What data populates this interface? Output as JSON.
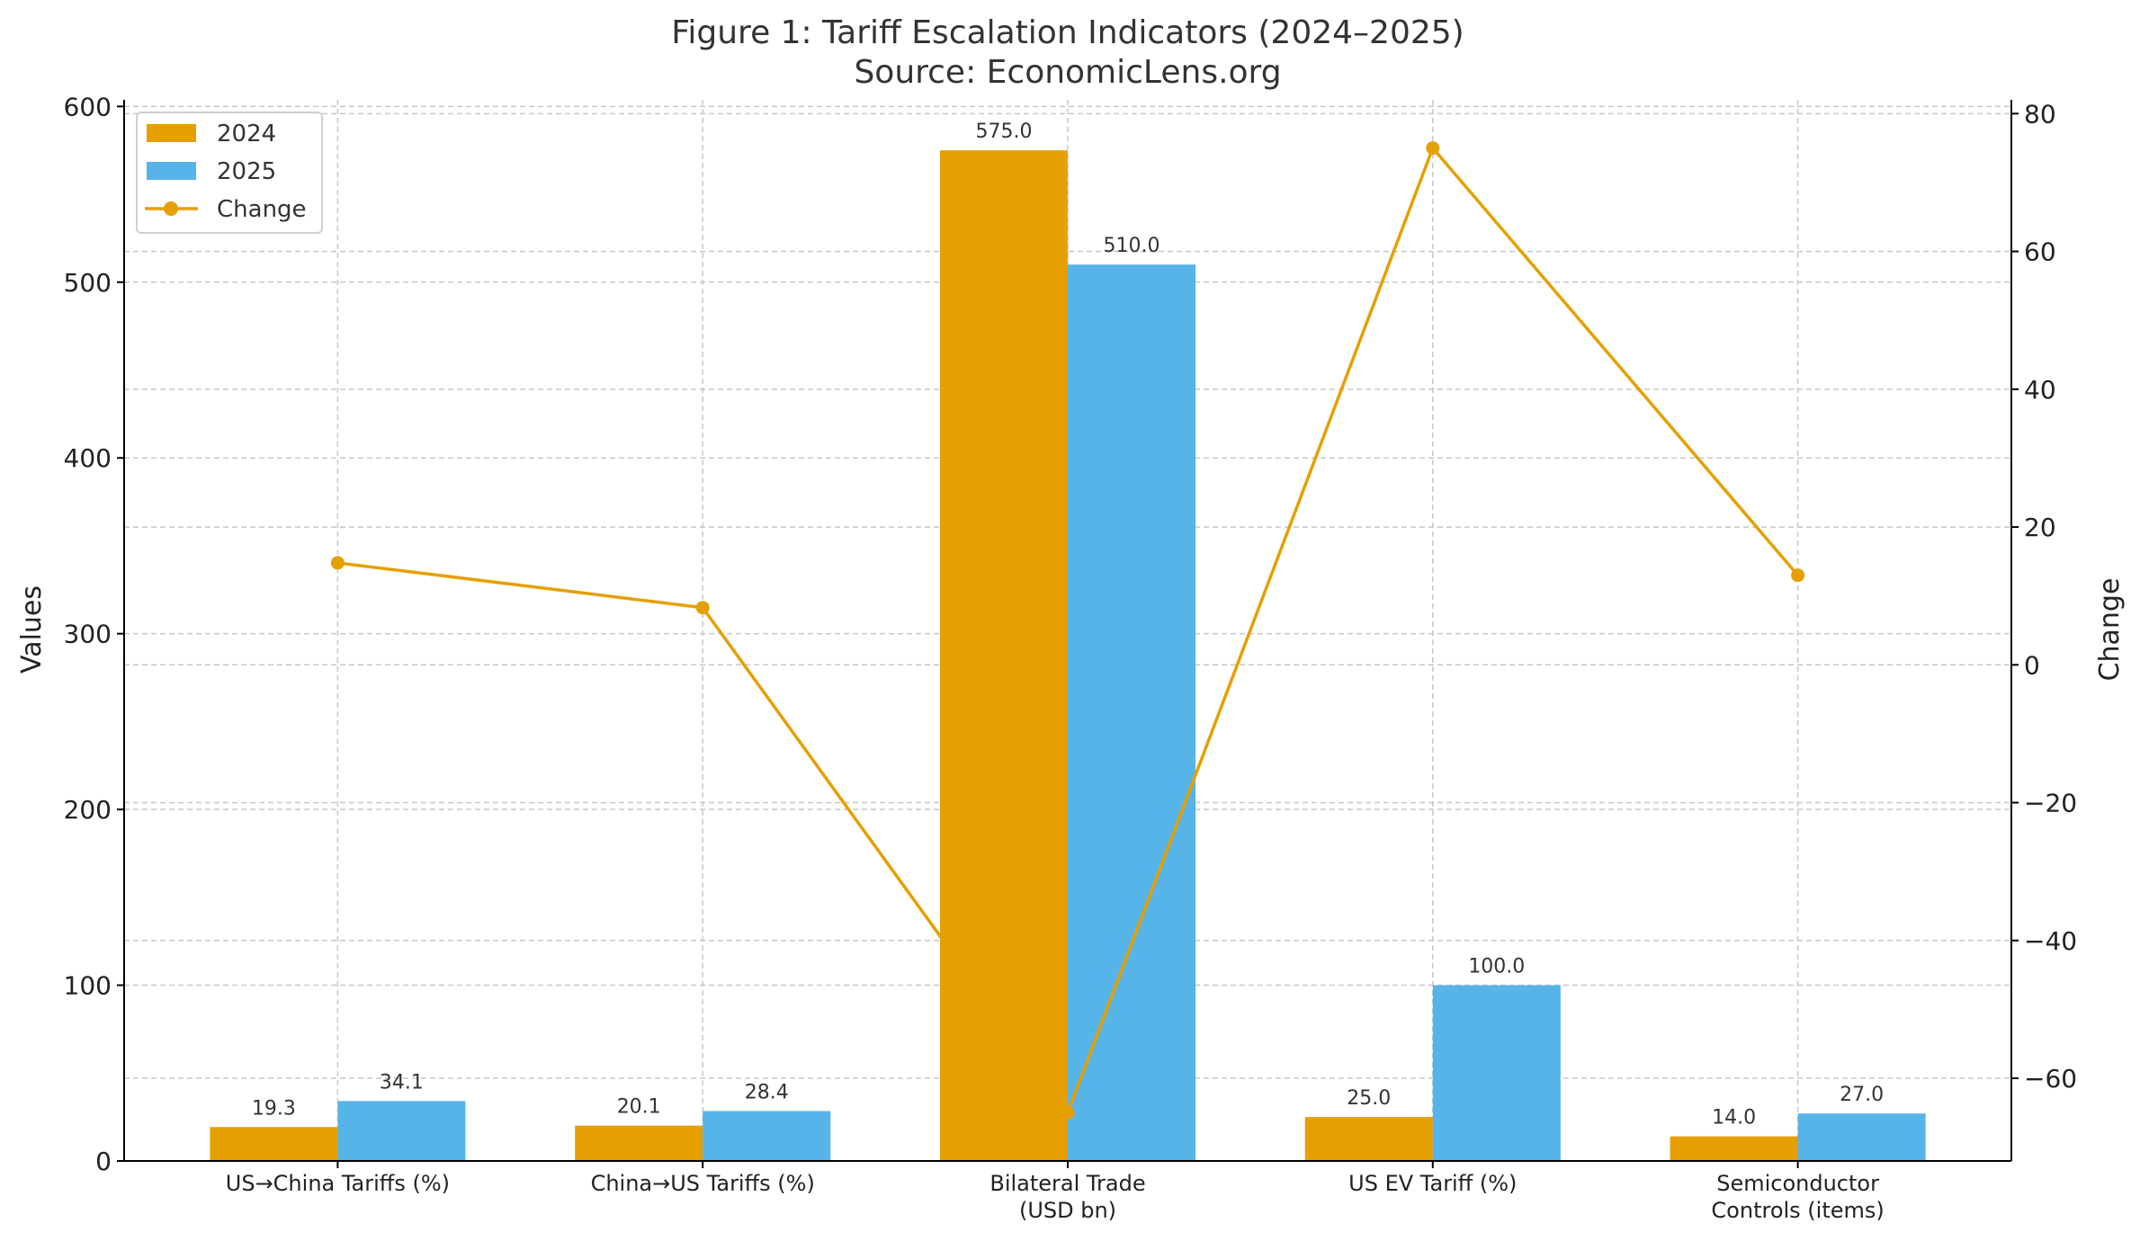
{
  "chart_data": {
    "type": "bar",
    "title": "Figure 1: Tariff Escalation Indicators (2024–2025)",
    "subtitle": "Source: EconomicLens.org",
    "categories": [
      "US→China Tariffs (%)",
      "China→US Tariffs (%)",
      "Bilateral Trade\n(USD bn)",
      "US EV Tariff (%)",
      "Semiconductor\nControls (items)"
    ],
    "series": [
      {
        "name": "2024",
        "type": "bar",
        "axis": "left",
        "color": "#E69F00",
        "values": [
          19.3,
          20.1,
          575.0,
          25.0,
          14.0
        ]
      },
      {
        "name": "2025",
        "type": "bar",
        "axis": "left",
        "color": "#56B4E9",
        "values": [
          34.1,
          28.4,
          510.0,
          100.0,
          27.0
        ]
      },
      {
        "name": "Change",
        "type": "line",
        "axis": "right",
        "color": "#E69F00",
        "values": [
          14.8,
          8.3,
          -65.0,
          75.0,
          13.0
        ]
      }
    ],
    "ylabel": "Values",
    "y2label": "Change",
    "ylim": [
      0,
      603.75
    ],
    "y2lim": [
      -72,
      82
    ],
    "yticks": [
      0,
      100,
      200,
      300,
      400,
      500,
      600
    ],
    "y2ticks": [
      -60,
      -40,
      -20,
      0,
      20,
      40,
      60,
      80
    ],
    "y2tick_labels": [
      "−60",
      "−40",
      "−20",
      "0",
      "20",
      "40",
      "60",
      "80"
    ],
    "bar_labels": true,
    "grid": true,
    "legend": "top-left"
  }
}
